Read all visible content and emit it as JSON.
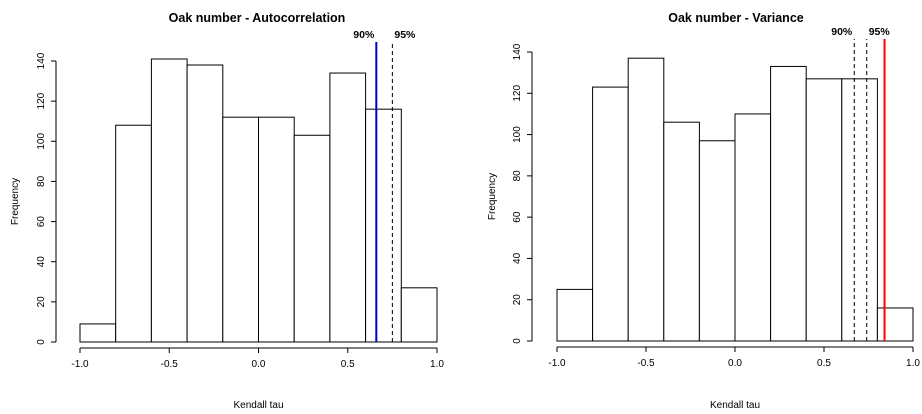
{
  "chart_data": [
    {
      "type": "bar",
      "subtype": "histogram",
      "title": "Oak number - Autocorrelation",
      "xlabel": "Kendall tau",
      "ylabel": "Frequency",
      "bin_edges": [
        -1.0,
        -0.8,
        -0.6,
        -0.4,
        -0.2,
        0.0,
        0.2,
        0.4,
        0.6,
        0.8,
        1.0
      ],
      "values": [
        9,
        108,
        141,
        138,
        112,
        112,
        103,
        134,
        116,
        27
      ],
      "xlim": [
        -1.0,
        1.0
      ],
      "ylim": [
        0,
        140
      ],
      "xticks": [
        -1.0,
        -0.5,
        0.0,
        0.5,
        1.0
      ],
      "xtick_labels": [
        "-1.0",
        "-0.5",
        "0.0",
        "0.5",
        "1.0"
      ],
      "yticks": [
        0,
        20,
        40,
        60,
        80,
        100,
        120,
        140
      ],
      "ytick_labels": [
        "0",
        "20",
        "40",
        "60",
        "80",
        "100",
        "120",
        "140"
      ],
      "observed": {
        "value": 0.66,
        "color": "#0000cc"
      },
      "quantiles": [
        {
          "label": "90%",
          "value": 0.66
        },
        {
          "label": "95%",
          "value": 0.75
        }
      ],
      "grid": false
    },
    {
      "type": "bar",
      "subtype": "histogram",
      "title": "Oak number - Variance",
      "xlabel": "Kendall tau",
      "ylabel": "Frequency",
      "bin_edges": [
        -1.0,
        -0.8,
        -0.6,
        -0.4,
        -0.2,
        0.0,
        0.2,
        0.4,
        0.6,
        0.8,
        1.0
      ],
      "values": [
        25,
        123,
        137,
        106,
        97,
        110,
        133,
        127,
        127,
        16
      ],
      "xlim": [
        -1.0,
        1.0
      ],
      "ylim": [
        0,
        140
      ],
      "xticks": [
        -1.0,
        -0.5,
        0.0,
        0.5,
        1.0
      ],
      "xtick_labels": [
        "-1.0",
        "-0.5",
        "0.0",
        "0.5",
        "1.0"
      ],
      "yticks": [
        0,
        20,
        40,
        60,
        80,
        100,
        120,
        140
      ],
      "ytick_labels": [
        "0",
        "20",
        "40",
        "60",
        "80",
        "100",
        "120",
        "140"
      ],
      "observed": {
        "value": 0.84,
        "color": "#ff0000"
      },
      "quantiles": [
        {
          "label": "90%",
          "value": 0.67
        },
        {
          "label": "95%",
          "value": 0.74
        }
      ],
      "grid": false
    }
  ]
}
